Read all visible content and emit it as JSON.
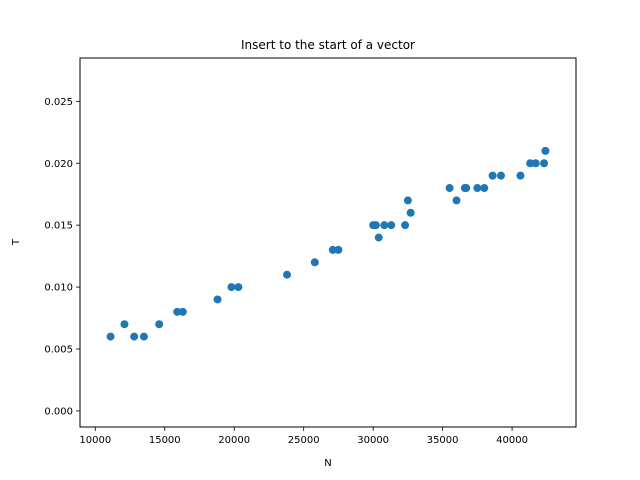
{
  "chart_data": {
    "type": "scatter",
    "title": "Insert to the start of a vector",
    "xlabel": "N",
    "ylabel": "T",
    "xlim": [
      8900,
      44600
    ],
    "ylim": [
      -0.0013,
      0.0285
    ],
    "x_ticks": [
      10000,
      15000,
      20000,
      25000,
      30000,
      35000,
      40000
    ],
    "y_ticks": [
      0.0,
      0.005,
      0.01,
      0.015,
      0.02,
      0.025
    ],
    "x_tick_labels": [
      "10000",
      "15000",
      "20000",
      "25000",
      "30000",
      "35000",
      "40000"
    ],
    "y_tick_labels": [
      "0.000",
      "0.005",
      "0.010",
      "0.015",
      "0.020",
      "0.025"
    ],
    "grid": false,
    "legend": "none",
    "marker_color": "#1f77b4",
    "points": [
      {
        "x": 11100,
        "y": 0.006
      },
      {
        "x": 12100,
        "y": 0.007
      },
      {
        "x": 12800,
        "y": 0.006
      },
      {
        "x": 13500,
        "y": 0.006
      },
      {
        "x": 14600,
        "y": 0.007
      },
      {
        "x": 15900,
        "y": 0.008
      },
      {
        "x": 16300,
        "y": 0.008
      },
      {
        "x": 18800,
        "y": 0.009
      },
      {
        "x": 19800,
        "y": 0.01
      },
      {
        "x": 20300,
        "y": 0.01
      },
      {
        "x": 23800,
        "y": 0.011
      },
      {
        "x": 25800,
        "y": 0.012
      },
      {
        "x": 27100,
        "y": 0.013
      },
      {
        "x": 27500,
        "y": 0.013
      },
      {
        "x": 30000,
        "y": 0.015
      },
      {
        "x": 30200,
        "y": 0.015
      },
      {
        "x": 30400,
        "y": 0.014
      },
      {
        "x": 30800,
        "y": 0.015
      },
      {
        "x": 31300,
        "y": 0.015
      },
      {
        "x": 32300,
        "y": 0.015
      },
      {
        "x": 32500,
        "y": 0.017
      },
      {
        "x": 32700,
        "y": 0.016
      },
      {
        "x": 35500,
        "y": 0.018
      },
      {
        "x": 36000,
        "y": 0.017
      },
      {
        "x": 36600,
        "y": 0.018
      },
      {
        "x": 36700,
        "y": 0.018
      },
      {
        "x": 37500,
        "y": 0.018
      },
      {
        "x": 38000,
        "y": 0.018
      },
      {
        "x": 38600,
        "y": 0.019
      },
      {
        "x": 39200,
        "y": 0.019
      },
      {
        "x": 40600,
        "y": 0.019
      },
      {
        "x": 41300,
        "y": 0.02
      },
      {
        "x": 41700,
        "y": 0.02
      },
      {
        "x": 42300,
        "y": 0.02
      },
      {
        "x": 42400,
        "y": 0.021
      }
    ]
  }
}
